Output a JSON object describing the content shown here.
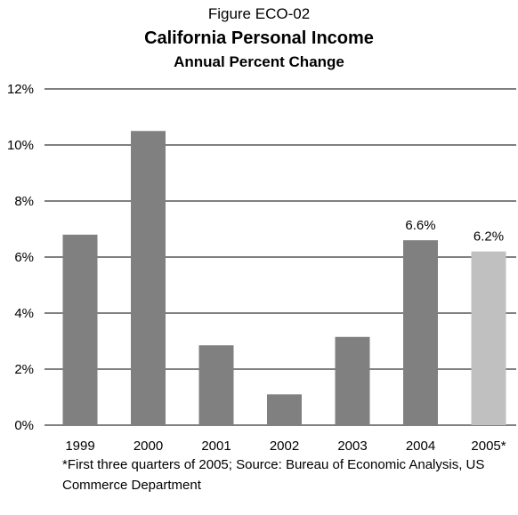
{
  "figure_label": "Figure ECO-02",
  "title": "California Personal Income",
  "subtitle": "Annual Percent Change",
  "footnote": "*First three quarters of 2005;  Source: Bureau of Economic Analysis, US Commerce Department",
  "colors": {
    "bar": "#808080",
    "bar_highlight": "#c0c0c0",
    "grid": "#000000"
  },
  "chart_data": {
    "type": "bar",
    "categories": [
      "1999",
      "2000",
      "2001",
      "2002",
      "2003",
      "2004",
      "2005*"
    ],
    "values": [
      6.8,
      10.5,
      2.85,
      1.1,
      3.15,
      6.6,
      6.2
    ],
    "data_labels": [
      "",
      "",
      "",
      "",
      "",
      "6.6%",
      "6.2%"
    ],
    "highlight_index": 6,
    "ylim": [
      0,
      12
    ],
    "yticks": [
      0,
      2,
      4,
      6,
      8,
      10,
      12
    ],
    "ytick_labels": [
      "0%",
      "2%",
      "4%",
      "6%",
      "8%",
      "10%",
      "12%"
    ],
    "grid": true,
    "legend": "none"
  }
}
